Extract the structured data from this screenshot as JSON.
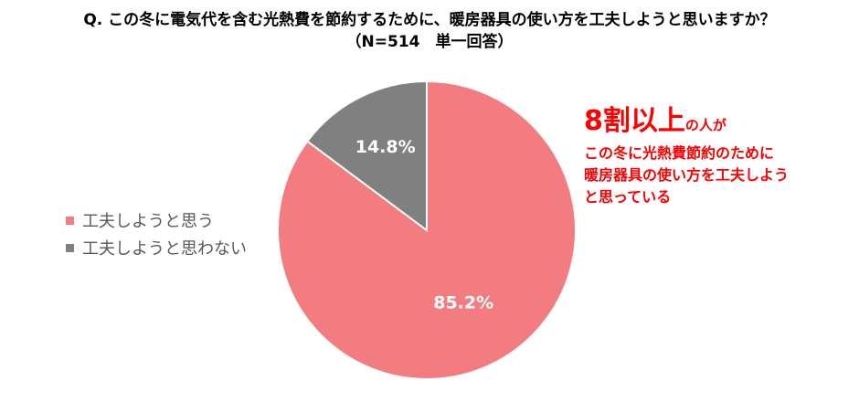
{
  "title_lines": [
    "Q. この冬に電気代を含む光熱費を節約するために、暖房器具の使い方を工夫しようと思いますか？",
    "（N=514　単一回答）"
  ],
  "chart_data": {
    "type": "pie",
    "categories": [
      "工夫しようと思う",
      "工夫しようと思わない"
    ],
    "values": [
      85.2,
      14.8
    ],
    "value_labels": [
      "85.2%",
      "14.8%"
    ],
    "colors": [
      "#f27c80",
      "#808080"
    ],
    "legend_position": "left",
    "start": "12 o'clock, clockwise"
  },
  "callout": {
    "big": "8割以上",
    "small": "の人が",
    "lines": [
      "この冬に光熱費節約のために",
      "暖房器具の使い方を工夫しよう",
      "と思っている"
    ],
    "color": "#ff0000"
  }
}
